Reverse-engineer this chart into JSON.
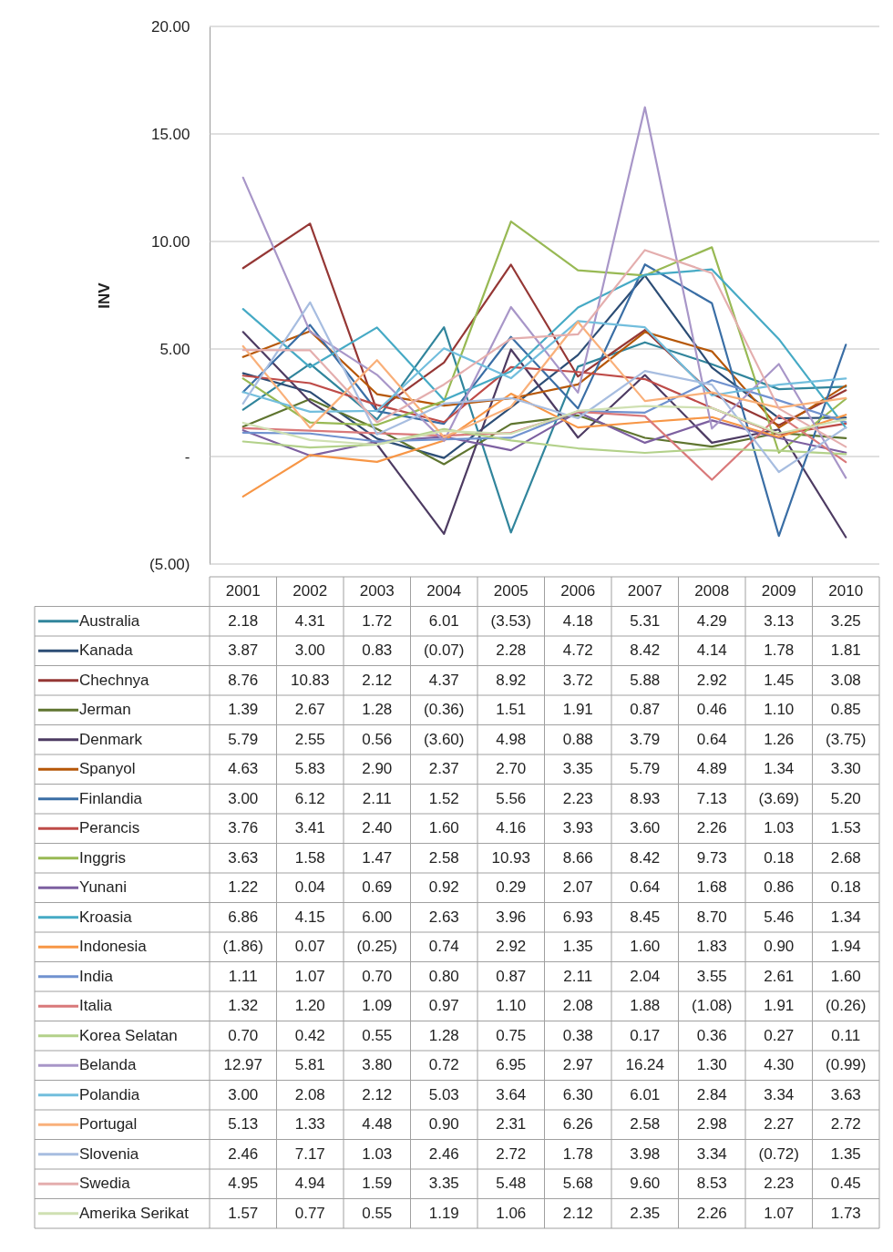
{
  "chart_data": {
    "type": "line",
    "ylabel": "INV",
    "categories": [
      "2001",
      "2002",
      "2003",
      "2004",
      "2005",
      "2006",
      "2007",
      "2008",
      "2009",
      "2010"
    ],
    "ylim": [
      -5,
      20
    ],
    "yticks": [
      {
        "value": -5,
        "label": "(5.00)"
      },
      {
        "value": 0,
        "label": "-"
      },
      {
        "value": 5,
        "label": "5.00"
      },
      {
        "value": 10,
        "label": "10.00"
      },
      {
        "value": 15,
        "label": "15.00"
      },
      {
        "value": 20,
        "label": "20.00"
      }
    ],
    "grid": "y",
    "legend": "bottom",
    "series": [
      {
        "name": "Australia",
        "color": "#31859c",
        "values": [
          2.18,
          4.31,
          1.72,
          6.01,
          -3.53,
          4.18,
          5.31,
          4.29,
          3.13,
          3.25
        ],
        "value_labels": [
          "2.18",
          "4.31",
          "1.72",
          "6.01",
          "(3.53)",
          "4.18",
          "5.31",
          "4.29",
          "3.13",
          "3.25"
        ]
      },
      {
        "name": "Kanada",
        "color": "#2c4d75",
        "values": [
          3.87,
          3.0,
          0.83,
          -0.07,
          2.28,
          4.72,
          8.42,
          4.14,
          1.78,
          1.81
        ],
        "value_labels": [
          "3.87",
          "3.00",
          "0.83",
          "(0.07)",
          "2.28",
          "4.72",
          "8.42",
          "4.14",
          "1.78",
          "1.81"
        ]
      },
      {
        "name": "Chechnya",
        "color": "#953735",
        "values": [
          8.76,
          10.83,
          2.12,
          4.37,
          8.92,
          3.72,
          5.88,
          2.92,
          1.45,
          3.08
        ],
        "value_labels": [
          "8.76",
          "10.83",
          "2.12",
          "4.37",
          "8.92",
          "3.72",
          "5.88",
          "2.92",
          "1.45",
          "3.08"
        ]
      },
      {
        "name": "Jerman",
        "color": "#5f7530",
        "values": [
          1.39,
          2.67,
          1.28,
          -0.36,
          1.51,
          1.91,
          0.87,
          0.46,
          1.1,
          0.85
        ],
        "value_labels": [
          "1.39",
          "2.67",
          "1.28",
          "(0.36)",
          "1.51",
          "1.91",
          "0.87",
          "0.46",
          "1.10",
          "0.85"
        ]
      },
      {
        "name": "Denmark",
        "color": "#4d3b62",
        "values": [
          5.79,
          2.55,
          0.56,
          -3.6,
          4.98,
          0.88,
          3.79,
          0.64,
          1.26,
          -3.75
        ],
        "value_labels": [
          "5.79",
          "2.55",
          "0.56",
          "(3.60)",
          "4.98",
          "0.88",
          "3.79",
          "0.64",
          "1.26",
          "(3.75)"
        ]
      },
      {
        "name": "Spanyol",
        "color": "#b65708",
        "values": [
          4.63,
          5.83,
          2.9,
          2.37,
          2.7,
          3.35,
          5.79,
          4.89,
          1.34,
          3.3
        ],
        "value_labels": [
          "4.63",
          "5.83",
          "2.90",
          "2.37",
          "2.70",
          "3.35",
          "5.79",
          "4.89",
          "1.34",
          "3.30"
        ]
      },
      {
        "name": "Finlandia",
        "color": "#3a6ea5",
        "values": [
          3.0,
          6.12,
          2.11,
          1.52,
          5.56,
          2.23,
          8.93,
          7.13,
          -3.69,
          5.2
        ],
        "value_labels": [
          "3.00",
          "6.12",
          "2.11",
          "1.52",
          "5.56",
          "2.23",
          "8.93",
          "7.13",
          "(3.69)",
          "5.20"
        ]
      },
      {
        "name": "Perancis",
        "color": "#be4b48",
        "values": [
          3.76,
          3.41,
          2.4,
          1.6,
          4.16,
          3.93,
          3.6,
          2.26,
          1.03,
          1.53
        ],
        "value_labels": [
          "3.76",
          "3.41",
          "2.40",
          "1.60",
          "4.16",
          "3.93",
          "3.60",
          "2.26",
          "1.03",
          "1.53"
        ]
      },
      {
        "name": "Inggris",
        "color": "#98b954",
        "values": [
          3.63,
          1.58,
          1.47,
          2.58,
          10.93,
          8.66,
          8.42,
          9.73,
          0.18,
          2.68
        ],
        "value_labels": [
          "3.63",
          "1.58",
          "1.47",
          "2.58",
          "10.93",
          "8.66",
          "8.42",
          "9.73",
          "0.18",
          "2.68"
        ]
      },
      {
        "name": "Yunani",
        "color": "#7d60a0",
        "values": [
          1.22,
          0.04,
          0.69,
          0.92,
          0.29,
          2.07,
          0.64,
          1.68,
          0.86,
          0.18
        ],
        "value_labels": [
          "1.22",
          "0.04",
          "0.69",
          "0.92",
          "0.29",
          "2.07",
          "0.64",
          "1.68",
          "0.86",
          "0.18"
        ]
      },
      {
        "name": "Kroasia",
        "color": "#46aac5",
        "values": [
          6.86,
          4.15,
          6.0,
          2.63,
          3.96,
          6.93,
          8.45,
          8.7,
          5.46,
          1.34
        ],
        "value_labels": [
          "6.86",
          "4.15",
          "6.00",
          "2.63",
          "3.96",
          "6.93",
          "8.45",
          "8.70",
          "5.46",
          "1.34"
        ]
      },
      {
        "name": "Indonesia",
        "color": "#f79646",
        "values": [
          -1.86,
          0.07,
          -0.25,
          0.74,
          2.92,
          1.35,
          1.6,
          1.83,
          0.9,
          1.94
        ],
        "value_labels": [
          "(1.86)",
          "0.07",
          "(0.25)",
          "0.74",
          "2.92",
          "1.35",
          "1.60",
          "1.83",
          "0.90",
          "1.94"
        ]
      },
      {
        "name": "India",
        "color": "#7092cf",
        "values": [
          1.11,
          1.07,
          0.7,
          0.8,
          0.87,
          2.11,
          2.04,
          3.55,
          2.61,
          1.6
        ],
        "value_labels": [
          "1.11",
          "1.07",
          "0.70",
          "0.80",
          "0.87",
          "2.11",
          "2.04",
          "3.55",
          "2.61",
          "1.60"
        ]
      },
      {
        "name": "Italia",
        "color": "#d9797a",
        "values": [
          1.32,
          1.2,
          1.09,
          0.97,
          1.1,
          2.08,
          1.88,
          -1.08,
          1.91,
          -0.26
        ],
        "value_labels": [
          "1.32",
          "1.20",
          "1.09",
          "0.97",
          "1.10",
          "2.08",
          "1.88",
          "(1.08)",
          "1.91",
          "(0.26)"
        ]
      },
      {
        "name": "Korea Selatan",
        "color": "#b3d18a",
        "values": [
          0.7,
          0.42,
          0.55,
          1.28,
          0.75,
          0.38,
          0.17,
          0.36,
          0.27,
          0.11
        ],
        "value_labels": [
          "0.70",
          "0.42",
          "0.55",
          "1.28",
          "0.75",
          "0.38",
          "0.17",
          "0.36",
          "0.27",
          "0.11"
        ]
      },
      {
        "name": "Belanda",
        "color": "#a896c8",
        "values": [
          12.97,
          5.81,
          3.8,
          0.72,
          6.95,
          2.97,
          16.24,
          1.3,
          4.3,
          -0.99
        ],
        "value_labels": [
          "12.97",
          "5.81",
          "3.80",
          "0.72",
          "6.95",
          "2.97",
          "16.24",
          "1.30",
          "4.30",
          "(0.99)"
        ]
      },
      {
        "name": "Polandia",
        "color": "#72bedd",
        "values": [
          3.0,
          2.08,
          2.12,
          5.03,
          3.64,
          6.3,
          6.01,
          2.84,
          3.34,
          3.63
        ],
        "value_labels": [
          "3.00",
          "2.08",
          "2.12",
          "5.03",
          "3.64",
          "6.30",
          "6.01",
          "2.84",
          "3.34",
          "3.63"
        ]
      },
      {
        "name": "Portugal",
        "color": "#f9b07a",
        "values": [
          5.13,
          1.33,
          4.48,
          0.9,
          2.31,
          6.26,
          2.58,
          2.98,
          2.27,
          2.72
        ],
        "value_labels": [
          "5.13",
          "1.33",
          "4.48",
          "0.90",
          "2.31",
          "6.26",
          "2.58",
          "2.98",
          "2.27",
          "2.72"
        ]
      },
      {
        "name": "Slovenia",
        "color": "#a7bde0",
        "values": [
          2.46,
          7.17,
          1.03,
          2.46,
          2.72,
          1.78,
          3.98,
          3.34,
          -0.72,
          1.35
        ],
        "value_labels": [
          "2.46",
          "7.17",
          "1.03",
          "2.46",
          "2.72",
          "1.78",
          "3.98",
          "3.34",
          "(0.72)",
          "1.35"
        ]
      },
      {
        "name": "Swedia",
        "color": "#e4aeae",
        "values": [
          4.95,
          4.94,
          1.59,
          3.35,
          5.48,
          5.68,
          9.6,
          8.53,
          2.23,
          0.45
        ],
        "value_labels": [
          "4.95",
          "4.94",
          "1.59",
          "3.35",
          "5.48",
          "5.68",
          "9.60",
          "8.53",
          "2.23",
          "0.45"
        ]
      },
      {
        "name": "Amerika Serikat",
        "color": "#cfe0b2",
        "values": [
          1.57,
          0.77,
          0.55,
          1.19,
          1.06,
          2.12,
          2.35,
          2.26,
          1.07,
          1.73
        ],
        "value_labels": [
          "1.57",
          "0.77",
          "0.55",
          "1.19",
          "1.06",
          "2.12",
          "2.35",
          "2.26",
          "1.07",
          "1.73"
        ]
      }
    ]
  }
}
